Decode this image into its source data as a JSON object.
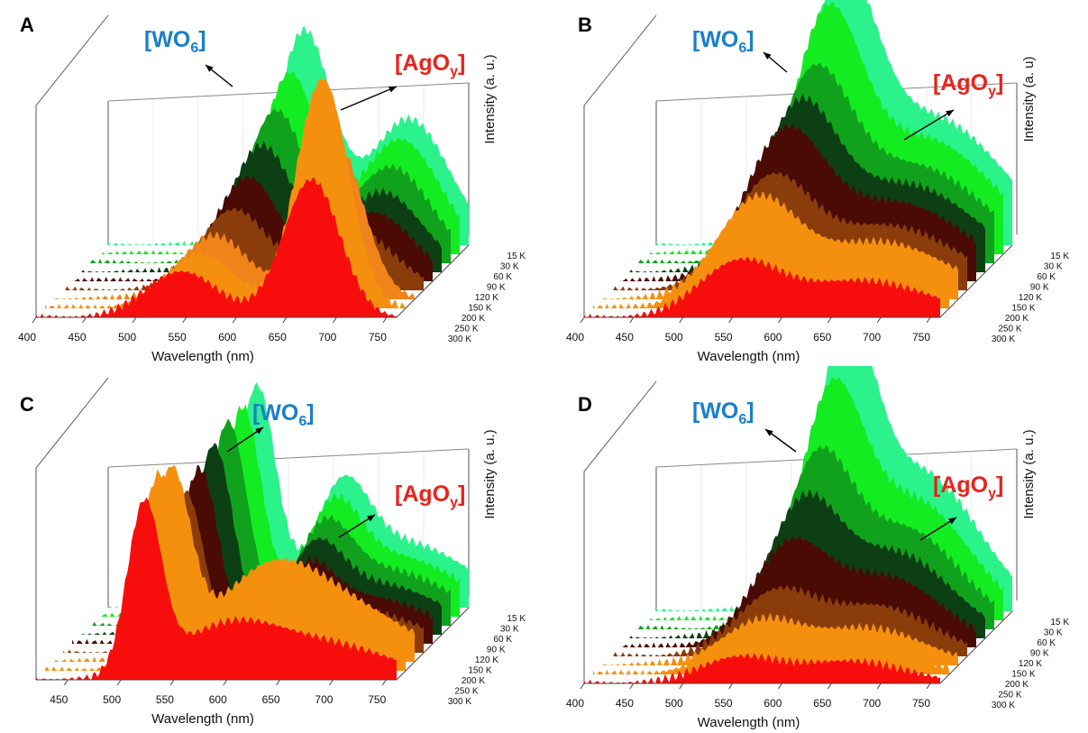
{
  "chart_data": [
    {
      "panel": "A",
      "type": "area",
      "xlabel": "Wavelength (nm)",
      "ylabel": "Intensity (a. u.)",
      "x_ticks": [
        "400",
        "450",
        "500",
        "550",
        "600",
        "650",
        "700",
        "750"
      ],
      "xlim": [
        400,
        760
      ],
      "z_ticks": [
        "15 K",
        "30 K",
        "60 K",
        "90 K",
        "120 K",
        "150 K",
        "200 K",
        "250 K",
        "300 K"
      ],
      "annotations": [
        {
          "base": "[WO",
          "sub": "6",
          "close": "]",
          "color": "#1a7fc9"
        },
        {
          "base": "[AgO",
          "sub": "y",
          "close": "]",
          "color": "#e8231c"
        }
      ],
      "series": [
        {
          "name": "15 K",
          "color": "#2cf28c",
          "peaks": [
            [
              595,
              0.92,
              28
            ],
            [
              700,
              0.55,
              40
            ]
          ]
        },
        {
          "name": "30 K",
          "color": "#14ec22",
          "peaks": [
            [
              590,
              0.78,
              28
            ],
            [
              700,
              0.5,
              40
            ]
          ]
        },
        {
          "name": "60 K",
          "color": "#10a21c",
          "peaks": [
            [
              585,
              0.66,
              30
            ],
            [
              700,
              0.42,
              40
            ]
          ]
        },
        {
          "name": "90 K",
          "color": "#0c3f13",
          "peaks": [
            [
              580,
              0.55,
              32
            ],
            [
              700,
              0.35,
              40
            ]
          ]
        },
        {
          "name": "120 K",
          "color": "#4a0b05",
          "peaks": [
            [
              575,
              0.45,
              32
            ],
            [
              700,
              0.3,
              40
            ]
          ]
        },
        {
          "name": "150 K",
          "color": "#8a3d0b",
          "peaks": [
            [
              570,
              0.35,
              34
            ],
            [
              690,
              0.26,
              40
            ]
          ]
        },
        {
          "name": "200 K",
          "color": "#f0831a",
          "peaks": [
            [
              560,
              0.28,
              34
            ],
            [
              680,
              0.7,
              28
            ]
          ]
        },
        {
          "name": "250 K",
          "color": "#f5900f",
          "peaks": [
            [
              555,
              0.24,
              34
            ],
            [
              677,
              1.0,
              26
            ]
          ]
        },
        {
          "name": "300 K",
          "color": "#f80d0d",
          "peaks": [
            [
              545,
              0.2,
              36
            ],
            [
              675,
              0.6,
              28
            ]
          ]
        }
      ]
    },
    {
      "panel": "B",
      "type": "area",
      "xlabel": "Wavelength (nm)",
      "ylabel": "Intensity (a. u)",
      "x_ticks": [
        "400",
        "450",
        "500",
        "550",
        "600",
        "650",
        "700",
        "750"
      ],
      "xlim": [
        400,
        760
      ],
      "z_ticks": [
        "15 K",
        "30 K",
        "60 K",
        "90 K",
        "120 K",
        "150 K",
        "200 K",
        "250 K",
        "300 K"
      ],
      "annotations": [
        {
          "base": "[WO",
          "sub": "6",
          "close": "]",
          "color": "#1a7fc9"
        },
        {
          "base": "[AgO",
          "sub": "y",
          "close": "]",
          "color": "#e8231c"
        }
      ],
      "series": [
        {
          "name": "15 K",
          "color": "#2cf28c",
          "peaks": [
            [
              585,
              1.0,
              35
            ],
            [
              680,
              0.55,
              70
            ]
          ]
        },
        {
          "name": "30 K",
          "color": "#14ec22",
          "peaks": [
            [
              580,
              0.9,
              35
            ],
            [
              680,
              0.5,
              70
            ]
          ]
        },
        {
          "name": "60 K",
          "color": "#10a21c",
          "peaks": [
            [
              575,
              0.72,
              38
            ],
            [
              680,
              0.42,
              70
            ]
          ]
        },
        {
          "name": "90 K",
          "color": "#0c3f13",
          "peaks": [
            [
              570,
              0.64,
              38
            ],
            [
              680,
              0.38,
              70
            ]
          ]
        },
        {
          "name": "120 K",
          "color": "#4a0b05",
          "peaks": [
            [
              565,
              0.58,
              40
            ],
            [
              680,
              0.34,
              70
            ]
          ]
        },
        {
          "name": "150 K",
          "color": "#8a3d0b",
          "peaks": [
            [
              560,
              0.44,
              40
            ],
            [
              680,
              0.28,
              70
            ]
          ]
        },
        {
          "name": "200 K",
          "color": "#f5900f",
          "peaks": [
            [
              555,
              0.4,
              40
            ],
            [
              680,
              0.25,
              70
            ]
          ]
        },
        {
          "name": "250 K",
          "color": "#f5900f",
          "peaks": [
            [
              555,
              0.3,
              40
            ],
            [
              680,
              0.2,
              70
            ]
          ]
        },
        {
          "name": "300 K",
          "color": "#f80d0d",
          "peaks": [
            [
              555,
              0.22,
              40
            ],
            [
              680,
              0.16,
              70
            ]
          ]
        }
      ]
    },
    {
      "panel": "C",
      "type": "area",
      "xlabel": "Wavelength (nm)",
      "ylabel": "Intensity (a. u.)",
      "x_ticks": [
        "450",
        "500",
        "550",
        "600",
        "650",
        "700",
        "750"
      ],
      "xlim": [
        420,
        760
      ],
      "z_ticks": [
        "15 K",
        "30 K",
        "60 K",
        "90 K",
        "120 K",
        "150 K",
        "200 K",
        "250 K",
        "300 K"
      ],
      "annotations": [
        {
          "base": "[WO",
          "sub": "6",
          "close": "]",
          "color": "#1a7fc9"
        },
        {
          "base": "[AgO",
          "sub": "y",
          "close": "]",
          "color": "#e8231c"
        }
      ],
      "series": [
        {
          "name": "15 K",
          "color": "#2cf28c",
          "peaks": [
            [
              560,
              0.95,
              18
            ],
            [
              640,
              0.4,
              25
            ],
            [
              700,
              0.28,
              60
            ]
          ]
        },
        {
          "name": "30 K",
          "color": "#14ec22",
          "peaks": [
            [
              555,
              0.9,
              18
            ],
            [
              640,
              0.36,
              25
            ],
            [
              700,
              0.26,
              60
            ]
          ]
        },
        {
          "name": "60 K",
          "color": "#10a21c",
          "peaks": [
            [
              550,
              0.88,
              18
            ],
            [
              640,
              0.32,
              25
            ],
            [
              700,
              0.24,
              60
            ]
          ]
        },
        {
          "name": "90 K",
          "color": "#0c3f13",
          "peaks": [
            [
              545,
              0.82,
              18
            ],
            [
              640,
              0.28,
              25
            ],
            [
              700,
              0.22,
              60
            ]
          ]
        },
        {
          "name": "120 K",
          "color": "#4a0b05",
          "peaks": [
            [
              540,
              0.76,
              18
            ],
            [
              640,
              0.24,
              25
            ],
            [
              700,
              0.2,
              60
            ]
          ]
        },
        {
          "name": "150 K",
          "color": "#8a3d0b",
          "peaks": [
            [
              535,
              0.7,
              18
            ],
            [
              640,
              0.22,
              25
            ],
            [
              700,
              0.18,
              60
            ]
          ]
        },
        {
          "name": "200 K",
          "color": "#f5900f",
          "peaks": [
            [
              530,
              0.78,
              18
            ],
            [
              620,
              0.35,
              50
            ],
            [
              700,
              0.2,
              60
            ]
          ]
        },
        {
          "name": "250 K",
          "color": "#f5900f",
          "peaks": [
            [
              527,
              0.8,
              18
            ],
            [
              620,
              0.33,
              50
            ],
            [
              700,
              0.18,
              60
            ]
          ]
        },
        {
          "name": "300 K",
          "color": "#f80d0d",
          "peaks": [
            [
              522,
              0.72,
              16
            ],
            [
              600,
              0.22,
              50
            ],
            [
              700,
              0.14,
              60
            ]
          ]
        }
      ]
    },
    {
      "panel": "D",
      "type": "area",
      "xlabel": "Wavelength (nm)",
      "ylabel": "Intensity (a. u.)",
      "x_ticks": [
        "400",
        "450",
        "500",
        "550",
        "600",
        "650",
        "700",
        "750"
      ],
      "xlim": [
        400,
        760
      ],
      "z_ticks": [
        "15 K",
        "30 K",
        "60 K",
        "90 K",
        "120 K",
        "150 K",
        "200 K",
        "250 K",
        "300 K"
      ],
      "annotations": [
        {
          "base": "[WO",
          "sub": "6",
          "close": "]",
          "color": "#1a7fc9"
        },
        {
          "base": "[AgO",
          "sub": "y",
          "close": "]",
          "color": "#e8231c"
        }
      ],
      "series": [
        {
          "name": "15 K",
          "color": "#2cf28c",
          "peaks": [
            [
              590,
              1.0,
              30
            ],
            [
              670,
              0.55,
              55
            ]
          ]
        },
        {
          "name": "30 K",
          "color": "#14ec22",
          "peaks": [
            [
              585,
              0.82,
              32
            ],
            [
              670,
              0.48,
              55
            ]
          ]
        },
        {
          "name": "60 K",
          "color": "#10a21c",
          "peaks": [
            [
              580,
              0.62,
              34
            ],
            [
              670,
              0.4,
              55
            ]
          ]
        },
        {
          "name": "90 K",
          "color": "#0c3f13",
          "peaks": [
            [
              575,
              0.5,
              36
            ],
            [
              670,
              0.34,
              55
            ]
          ]
        },
        {
          "name": "120 K",
          "color": "#4a0b05",
          "peaks": [
            [
              570,
              0.38,
              38
            ],
            [
              670,
              0.28,
              55
            ]
          ]
        },
        {
          "name": "150 K",
          "color": "#8a3d0b",
          "peaks": [
            [
              565,
              0.24,
              40
            ],
            [
              670,
              0.2,
              55
            ]
          ]
        },
        {
          "name": "200 K",
          "color": "#f5900f",
          "peaks": [
            [
              560,
              0.17,
              40
            ],
            [
              670,
              0.15,
              55
            ]
          ]
        },
        {
          "name": "250 K",
          "color": "#f5900f",
          "peaks": [
            [
              558,
              0.13,
              40
            ],
            [
              670,
              0.12,
              55
            ]
          ]
        },
        {
          "name": "300 K",
          "color": "#f80d0d",
          "peaks": [
            [
              555,
              0.1,
              40
            ],
            [
              670,
              0.09,
              55
            ]
          ]
        }
      ]
    }
  ]
}
